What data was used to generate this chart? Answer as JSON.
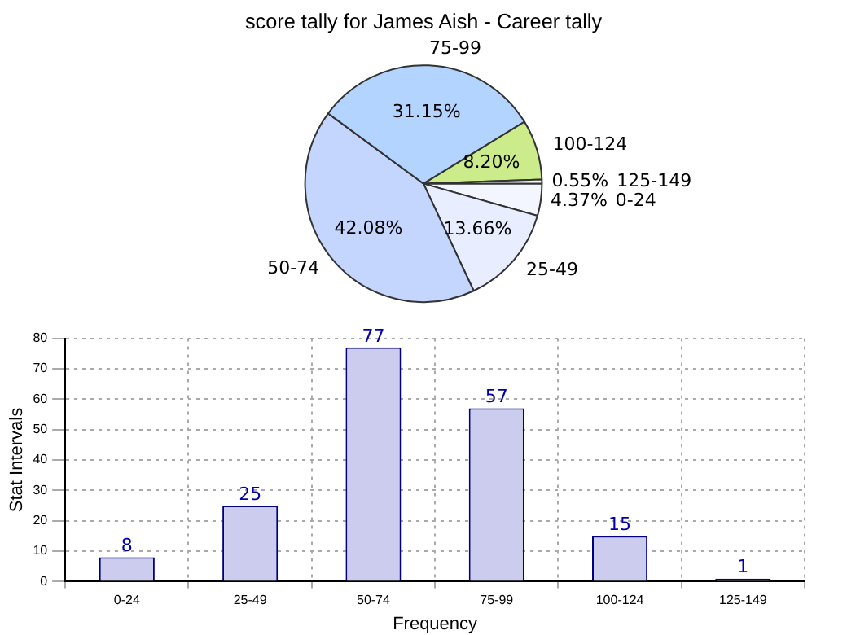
{
  "chart_data": [
    {
      "type": "pie",
      "title": "score tally for James Aish - Career tally",
      "categories": [
        "0-24",
        "25-49",
        "50-74",
        "75-99",
        "100-124",
        "125-149"
      ],
      "values": [
        4.37,
        13.66,
        42.08,
        31.15,
        8.2,
        0.55
      ],
      "colors": [
        "#f4f6ff",
        "#e8eeff",
        "#c4d6fe",
        "#b3d4ff",
        "#cceb8a",
        "#fafafa"
      ],
      "value_labels": [
        "4.37%",
        "13.66%",
        "42.08%",
        "31.15%",
        "8.20%",
        "0.55%"
      ],
      "legend": false
    },
    {
      "type": "bar",
      "categories": [
        "0-24",
        "25-49",
        "50-74",
        "75-99",
        "100-124",
        "125-149"
      ],
      "values": [
        8,
        25,
        77,
        57,
        15,
        1
      ],
      "color": "#ccccee",
      "ylim": [
        0,
        80
      ],
      "yticks": [
        0,
        10,
        20,
        30,
        40,
        50,
        60,
        70,
        80
      ],
      "xlabel": "Frequency",
      "ylabel": "Stat Intervals",
      "grid": true,
      "data_labels": true,
      "legend": false
    }
  ]
}
